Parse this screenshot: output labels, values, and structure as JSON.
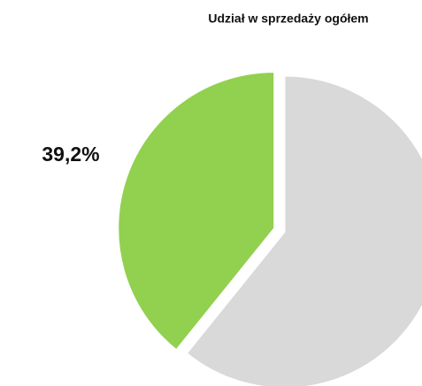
{
  "chart_data": {
    "type": "pie",
    "title": "Udział w sprzedaży ogółem",
    "values": [
      39.2,
      60.8
    ],
    "value_labels": [
      "39,2%",
      null
    ],
    "colors": [
      "#92d050",
      "#d9d9d9"
    ]
  }
}
